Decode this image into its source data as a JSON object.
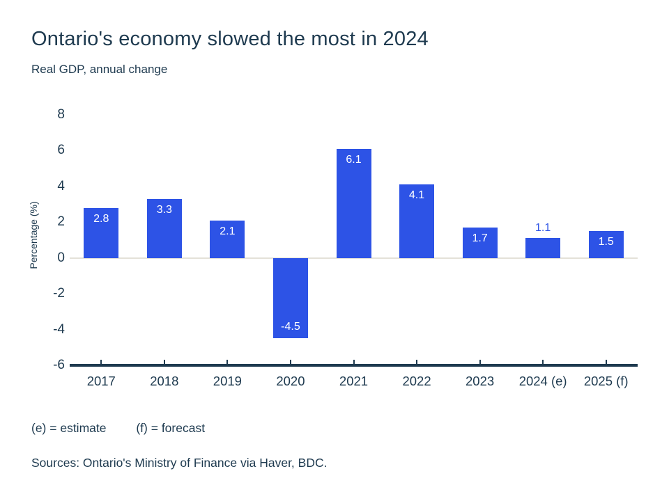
{
  "header": {
    "title": "Ontario's economy slowed the most in 2024",
    "subtitle": "Real GDP, annual change"
  },
  "chart_data": {
    "type": "bar",
    "categories": [
      "2017",
      "2018",
      "2019",
      "2020",
      "2021",
      "2022",
      "2023",
      "2024 (e)",
      "2025 (f)"
    ],
    "values": [
      2.8,
      3.3,
      2.1,
      -4.5,
      6.1,
      4.1,
      1.7,
      1.1,
      1.5
    ],
    "title": "Ontario's economy slowed the most in 2024",
    "subtitle": "Real GDP, annual change",
    "xlabel": "",
    "ylabel": "Percentage (%)",
    "ylim": [
      -6,
      8
    ],
    "yticks": [
      8,
      6,
      4,
      2,
      0,
      -2,
      -4,
      -6
    ],
    "grid": false,
    "legend": false,
    "bar_color": "#2d53e6",
    "value_label_inside_color": "#ffffff",
    "value_label_outside_color": "#2d53e6",
    "axis_color": "#1e3a4f",
    "zero_line_color": "#e4e1d8"
  },
  "footer": {
    "estimate_note": "(e) = estimate",
    "forecast_note": "(f) = forecast",
    "sources": "Sources: Ontario's Ministry of Finance via Haver, BDC."
  }
}
